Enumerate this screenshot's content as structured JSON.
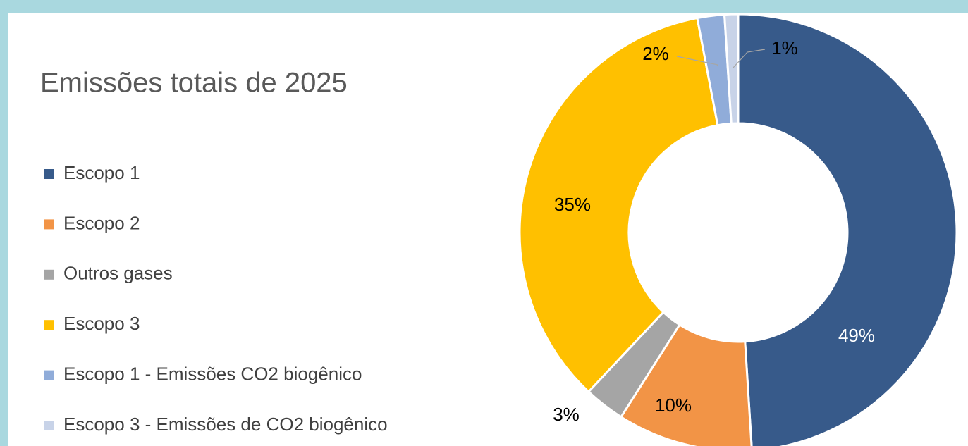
{
  "chart_data": {
    "type": "donut",
    "title": "Emissões totais de 2025",
    "categories": [
      "Escopo 1",
      "Escopo 2",
      "Outros gases",
      "Escopo 3",
      "Escopo 1 -  Emissões CO2 biogênico",
      "Escopo 3 - Emissões de CO2 biogênico"
    ],
    "values": [
      49,
      10,
      3,
      35,
      2,
      1
    ],
    "value_labels": [
      "49%",
      "10%",
      "3%",
      "35%",
      "2%",
      "1%"
    ],
    "colors": [
      "#375a8a",
      "#f29446",
      "#a5a5a5",
      "#ffc000",
      "#90acd9",
      "#c8d3e8"
    ],
    "legend": "left"
  }
}
